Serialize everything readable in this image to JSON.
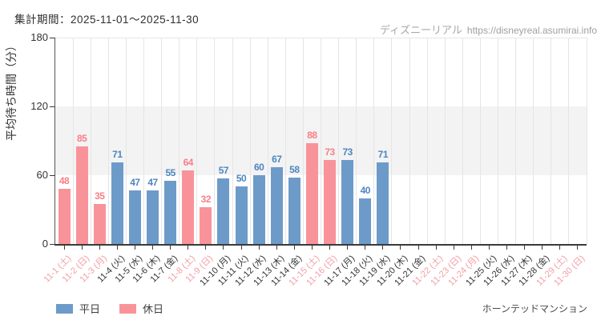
{
  "header": {
    "title": "集計期間：2025-11-01～2025-11-30",
    "watermark_brand": "ディズニーリアル",
    "watermark_url": "https://disneyreal.asumirai.info"
  },
  "footer": {
    "attraction": "ホーンテッドマンション"
  },
  "colors": {
    "weekday_bar": "#6d9bc9",
    "weekday_value_text": "#4e86c0",
    "holiday_bar": "#f9939a",
    "holiday_value_text": "#f87f87",
    "weekday_axis_label": "#333333",
    "holiday_axis_label": "#f2a0a6",
    "band_fill": "#f3f3f3",
    "axis": "#3a3a3a"
  },
  "chart_data": {
    "type": "bar",
    "title": "集計期間：2025-11-01～2025-11-30",
    "xlabel": "",
    "ylabel": "平均待ち時間（分）",
    "ylim": [
      0,
      180
    ],
    "yticks": [
      0,
      60,
      120,
      180
    ],
    "shaded_band": [
      60,
      120
    ],
    "grid": "vertical-per-day",
    "legend_position": "bottom-left",
    "series": [
      {
        "name": "平日",
        "color": "#6d9bc9"
      },
      {
        "name": "休日",
        "color": "#f9939a"
      }
    ],
    "days": [
      {
        "label": "11-1 (土)",
        "daytype": "holiday",
        "value": 48
      },
      {
        "label": "11-2 (日)",
        "daytype": "holiday",
        "value": 85
      },
      {
        "label": "11-3 (月)",
        "daytype": "holiday",
        "value": 35
      },
      {
        "label": "11-4 (火)",
        "daytype": "weekday",
        "value": 71
      },
      {
        "label": "11-5 (水)",
        "daytype": "weekday",
        "value": 47
      },
      {
        "label": "11-6 (木)",
        "daytype": "weekday",
        "value": 47
      },
      {
        "label": "11-7 (金)",
        "daytype": "weekday",
        "value": 55
      },
      {
        "label": "11-8 (土)",
        "daytype": "holiday",
        "value": 64
      },
      {
        "label": "11-9 (日)",
        "daytype": "holiday",
        "value": 32
      },
      {
        "label": "11-10 (月)",
        "daytype": "weekday",
        "value": 57
      },
      {
        "label": "11-11 (火)",
        "daytype": "weekday",
        "value": 50
      },
      {
        "label": "11-12 (水)",
        "daytype": "weekday",
        "value": 60
      },
      {
        "label": "11-13 (木)",
        "daytype": "weekday",
        "value": 67
      },
      {
        "label": "11-14 (金)",
        "daytype": "weekday",
        "value": 58
      },
      {
        "label": "11-15 (土)",
        "daytype": "holiday",
        "value": 88
      },
      {
        "label": "11-16 (日)",
        "daytype": "holiday",
        "value": 73
      },
      {
        "label": "11-17 (月)",
        "daytype": "weekday",
        "value": 73
      },
      {
        "label": "11-18 (火)",
        "daytype": "weekday",
        "value": 40
      },
      {
        "label": "11-19 (水)",
        "daytype": "weekday",
        "value": 71
      },
      {
        "label": "11-20 (木)",
        "daytype": "weekday",
        "value": null
      },
      {
        "label": "11-21 (金)",
        "daytype": "weekday",
        "value": null
      },
      {
        "label": "11-22 (土)",
        "daytype": "holiday",
        "value": null
      },
      {
        "label": "11-23 (日)",
        "daytype": "holiday",
        "value": null
      },
      {
        "label": "11-24 (月)",
        "daytype": "holiday",
        "value": null
      },
      {
        "label": "11-25 (火)",
        "daytype": "weekday",
        "value": null
      },
      {
        "label": "11-26 (水)",
        "daytype": "weekday",
        "value": null
      },
      {
        "label": "11-27 (木)",
        "daytype": "weekday",
        "value": null
      },
      {
        "label": "11-28 (金)",
        "daytype": "weekday",
        "value": null
      },
      {
        "label": "11-29 (土)",
        "daytype": "holiday",
        "value": null
      },
      {
        "label": "11-30 (日)",
        "daytype": "holiday",
        "value": null
      }
    ]
  }
}
